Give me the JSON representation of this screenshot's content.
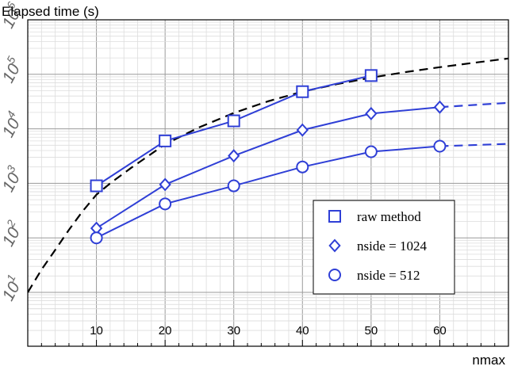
{
  "chart_data": {
    "type": "line",
    "ylabel": "Elapsed time (s)",
    "xlabel": "nmax",
    "xlim": [
      0,
      70
    ],
    "ylim": [
      10,
      1000000
    ],
    "y_scale": "log",
    "grid": true,
    "legend_position": "lower-right",
    "x_ticks": [
      10,
      20,
      30,
      40,
      50,
      60
    ],
    "x_tick_labels": [
      "10",
      "20",
      "30",
      "40",
      "50",
      "60"
    ],
    "y_ticks": [
      10,
      100,
      1000,
      10000,
      100000,
      1000000
    ],
    "y_tick_labels": [
      {
        "base": "10",
        "exp": "1"
      },
      {
        "base": "10",
        "exp": "2"
      },
      {
        "base": "10",
        "exp": "3"
      },
      {
        "base": "10",
        "exp": "4"
      },
      {
        "base": "10",
        "exp": "5"
      },
      {
        "base": "10",
        "exp": "6"
      }
    ],
    "series": [
      {
        "name": "raw method",
        "marker": "square",
        "color": "#2f3fd6",
        "x": [
          10,
          20,
          30,
          40,
          50
        ],
        "y": [
          900,
          6000,
          14000,
          48000,
          95000
        ],
        "extrapolation": null
      },
      {
        "name": "nside = 1024",
        "marker": "diamond",
        "color": "#2f3fd6",
        "x": [
          10,
          20,
          30,
          40,
          50,
          60
        ],
        "y": [
          150,
          950,
          3200,
          9500,
          19000,
          25000
        ],
        "extrapolation": {
          "x": [
            60,
            70
          ],
          "y": [
            25000,
            30000
          ]
        }
      },
      {
        "name": "nside = 512",
        "marker": "circle",
        "color": "#2f3fd6",
        "x": [
          10,
          20,
          30,
          40,
          50,
          60
        ],
        "y": [
          100,
          420,
          900,
          2000,
          3800,
          4800
        ],
        "extrapolation": {
          "x": [
            60,
            70
          ],
          "y": [
            4800,
            5300
          ]
        }
      }
    ],
    "fit_curve": {
      "color": "#000000",
      "x": [
        0,
        2,
        4,
        6,
        8,
        10,
        12,
        15,
        20,
        25,
        30,
        35,
        40,
        45,
        50,
        55,
        60,
        65,
        70
      ],
      "y": [
        10,
        26,
        60,
        140,
        310,
        620,
        1000,
        1900,
        5200,
        10700,
        19500,
        32000,
        48000,
        66000,
        87000,
        110000,
        135000,
        163000,
        195000
      ]
    }
  }
}
